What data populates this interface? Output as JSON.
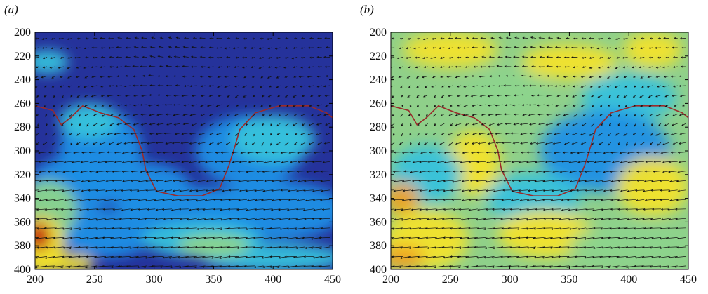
{
  "panels": {
    "a": {
      "label": "(a)"
    },
    "b": {
      "label": "(b)"
    }
  },
  "chart_data": [
    {
      "type": "heatmap",
      "panel": "(a)",
      "title": "",
      "xlabel": "",
      "ylabel": "",
      "xlim": [
        200,
        450
      ],
      "ylim": [
        200,
        400
      ],
      "y_reversed": true,
      "xticks": [
        200,
        250,
        300,
        350,
        400,
        450
      ],
      "yticks": [
        200,
        220,
        240,
        260,
        280,
        300,
        320,
        340,
        360,
        380,
        400
      ],
      "overlay": [
        "colour field",
        "velocity vector arrows (quiver)",
        "dark red contour line"
      ],
      "colormap": [
        "#1f2b8f",
        "#2a44c8",
        "#1e8fe6",
        "#36c2dc",
        "#8cd48c",
        "#f3e32c",
        "#f0a020",
        "#c21e10"
      ],
      "background_color": "#25329b",
      "contour_color": "#9b2a2a"
    },
    {
      "type": "heatmap",
      "panel": "(b)",
      "title": "",
      "xlabel": "",
      "ylabel": "",
      "xlim": [
        200,
        450
      ],
      "ylim": [
        200,
        400
      ],
      "y_reversed": true,
      "xticks": [
        200,
        250,
        300,
        350,
        400,
        450
      ],
      "yticks": [
        200,
        220,
        240,
        260,
        280,
        300,
        320,
        340,
        360,
        380,
        400
      ],
      "overlay": [
        "colour field",
        "velocity vector arrows (quiver)",
        "dark red contour line"
      ],
      "colormap": [
        "#1e8fe6",
        "#36c2dc",
        "#8cd48c",
        "#f3e32c",
        "#f0a020"
      ],
      "background_color": "#8fd08a",
      "contour_color": "#9b2a2a"
    }
  ]
}
